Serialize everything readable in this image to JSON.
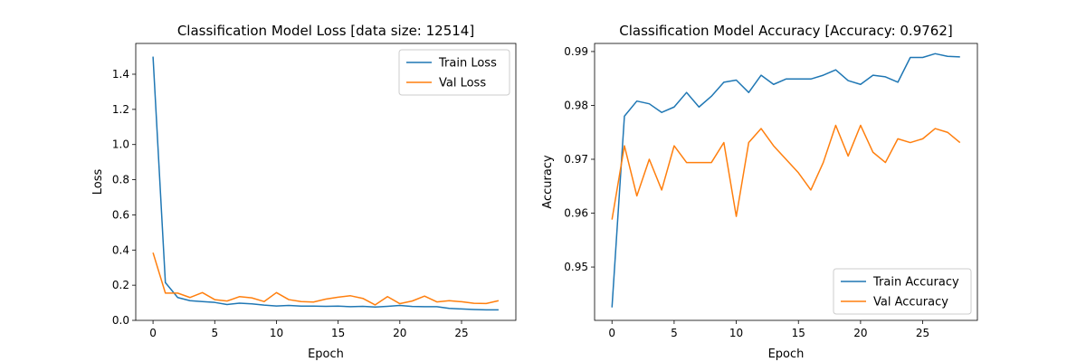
{
  "chart_data": [
    {
      "type": "line",
      "title": "Classification Model Loss [data size: 12514]",
      "xlabel": "Epoch",
      "ylabel": "Loss",
      "xlim": [
        -1.4,
        29.4
      ],
      "ylim": [
        -0.0,
        1.575
      ],
      "xticks": [
        0,
        5,
        10,
        15,
        20,
        25
      ],
      "yticks": [
        0.0,
        0.2,
        0.4,
        0.6,
        0.8,
        1.0,
        1.2,
        1.4
      ],
      "ytick_decimals": 1,
      "legend_position": "top-right",
      "x": [
        0,
        1,
        2,
        3,
        4,
        5,
        6,
        7,
        8,
        9,
        10,
        11,
        12,
        13,
        14,
        15,
        16,
        17,
        18,
        19,
        20,
        21,
        22,
        23,
        24,
        25,
        26,
        27,
        28
      ],
      "series": [
        {
          "name": "Train Loss",
          "color": "#1f77b4",
          "values": [
            1.5,
            0.215,
            0.13,
            0.112,
            0.107,
            0.102,
            0.09,
            0.098,
            0.094,
            0.087,
            0.082,
            0.085,
            0.081,
            0.081,
            0.08,
            0.081,
            0.078,
            0.08,
            0.076,
            0.08,
            0.085,
            0.079,
            0.078,
            0.078,
            0.068,
            0.065,
            0.062,
            0.06,
            0.06
          ]
        },
        {
          "name": "Val Loss",
          "color": "#ff7f0e",
          "values": [
            0.385,
            0.155,
            0.155,
            0.13,
            0.158,
            0.118,
            0.11,
            0.135,
            0.128,
            0.107,
            0.158,
            0.118,
            0.107,
            0.104,
            0.121,
            0.132,
            0.14,
            0.125,
            0.088,
            0.135,
            0.095,
            0.11,
            0.138,
            0.105,
            0.112,
            0.106,
            0.097,
            0.096,
            0.112
          ]
        }
      ]
    },
    {
      "type": "line",
      "title": "Classification Model Accuracy [Accuracy: 0.9762]",
      "xlabel": "Epoch",
      "ylabel": "Accuracy",
      "xlim": [
        -1.4,
        29.4
      ],
      "ylim": [
        0.9401,
        0.9915
      ],
      "xticks": [
        0,
        5,
        10,
        15,
        20,
        25
      ],
      "yticks": [
        0.95,
        0.96,
        0.97,
        0.98,
        0.99
      ],
      "ytick_decimals": 2,
      "legend_position": "bottom-right",
      "x": [
        0,
        1,
        2,
        3,
        4,
        5,
        6,
        7,
        8,
        9,
        10,
        11,
        12,
        13,
        14,
        15,
        16,
        17,
        18,
        19,
        20,
        21,
        22,
        23,
        24,
        25,
        26,
        27,
        28
      ],
      "series": [
        {
          "name": "Train Accuracy",
          "color": "#1f77b4",
          "values": [
            0.9425,
            0.978,
            0.9808,
            0.9803,
            0.9787,
            0.9797,
            0.9824,
            0.9797,
            0.9817,
            0.9843,
            0.9847,
            0.9824,
            0.9856,
            0.9839,
            0.9849,
            0.9849,
            0.9849,
            0.9856,
            0.9866,
            0.9846,
            0.9839,
            0.9856,
            0.9853,
            0.9843,
            0.9889,
            0.9889,
            0.9896,
            0.9891,
            0.989
          ]
        },
        {
          "name": "Val Accuracy",
          "color": "#ff7f0e",
          "values": [
            0.9588,
            0.9725,
            0.9632,
            0.97,
            0.9643,
            0.9725,
            0.9694,
            0.9694,
            0.9694,
            0.9731,
            0.9594,
            0.9731,
            0.9757,
            0.9725,
            0.97,
            0.9675,
            0.9643,
            0.9694,
            0.9763,
            0.9706,
            0.9763,
            0.9713,
            0.9694,
            0.9738,
            0.9731,
            0.9738,
            0.9757,
            0.975,
            0.9731
          ]
        }
      ]
    }
  ]
}
